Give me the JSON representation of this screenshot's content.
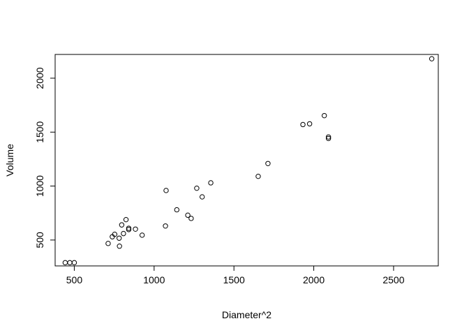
{
  "chart_data": {
    "type": "scatter",
    "title": "",
    "xlabel": "Diameter^2",
    "ylabel": "Volume",
    "xlim": [
      380,
      2780
    ],
    "ylim": [
      260,
      2220
    ],
    "xticks": [
      500,
      1000,
      1500,
      2000,
      2500
    ],
    "yticks": [
      500,
      1000,
      1500,
      2000
    ],
    "grid": false,
    "marker": "open-circle",
    "points": [
      [
        443,
        290
      ],
      [
        472,
        290
      ],
      [
        500,
        290
      ],
      [
        712,
        468
      ],
      [
        738,
        530
      ],
      [
        753,
        553
      ],
      [
        781,
        517
      ],
      [
        783,
        443
      ],
      [
        797,
        640
      ],
      [
        808,
        560
      ],
      [
        824,
        689
      ],
      [
        841,
        597
      ],
      [
        841,
        609
      ],
      [
        883,
        601
      ],
      [
        925,
        545
      ],
      [
        1071,
        630
      ],
      [
        1075,
        959
      ],
      [
        1142,
        780
      ],
      [
        1211,
        730
      ],
      [
        1232,
        700
      ],
      [
        1267,
        980
      ],
      [
        1301,
        900
      ],
      [
        1355,
        1030
      ],
      [
        1652,
        1090
      ],
      [
        1713,
        1209
      ],
      [
        1932,
        1570
      ],
      [
        1974,
        1577
      ],
      [
        2066,
        1653
      ],
      [
        2092,
        1441
      ],
      [
        2092,
        1455
      ],
      [
        2739,
        2180
      ]
    ]
  }
}
